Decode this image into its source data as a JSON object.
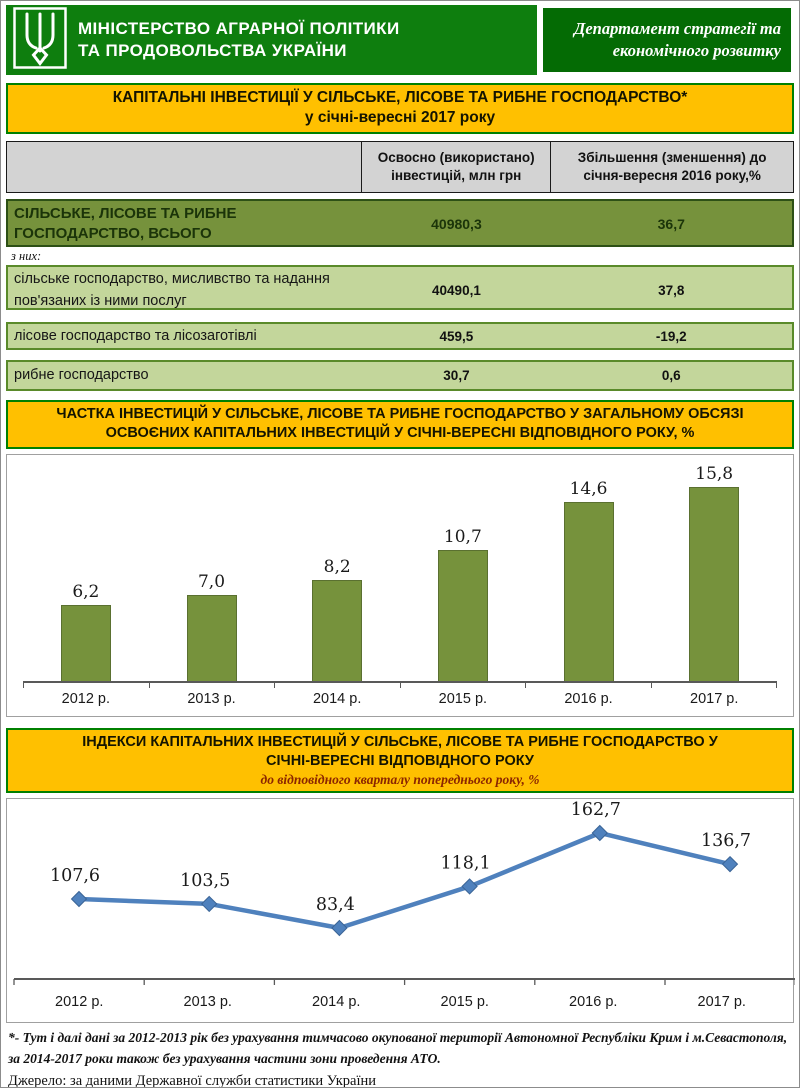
{
  "header": {
    "ministry_line1": "МІНІСТЕРСТВО АГРАРНОЇ ПОЛІТИКИ",
    "ministry_line2": "ТА ПРОДОВОЛЬСТВА УКРАЇНИ",
    "department_line1": "Департамент стратегії та",
    "department_line2": "економічного розвитку"
  },
  "title_bar": {
    "line1": "КАПІТАЛЬНІ ІНВЕСТИЦІЇ У СІЛЬСЬКЕ, ЛІСОВЕ ТА РИБНЕ ГОСПОДАРСТВО*",
    "line2": "у січні-вересні 2017 року"
  },
  "table": {
    "col2_header": "Освосно (використано) інвестицій, млн грн",
    "col3_header": "Збільшення (зменшення)  до січня-вересня 2016 року,%",
    "total_row": {
      "label": "СІЛЬСЬКЕ, ЛІСОВЕ ТА РИБНЕ ГОСПОДАРСТВО, ВСЬОГО",
      "value": "40980,3",
      "change": "36,7"
    },
    "subnote": "з них:",
    "rows": [
      {
        "label": "сільське господарство, мисливство та надання пов'язаних із ними послуг",
        "value": "40490,1",
        "change": "37,8"
      },
      {
        "label": "лісове господарство та лісозаготівлі",
        "value": "459,5",
        "change": "-19,2"
      },
      {
        "label": "рибне господарство",
        "value": "30,7",
        "change": "0,6"
      }
    ]
  },
  "share_section": {
    "title_line1": "ЧАСТКА ІНВЕСТИЦІЙ У СІЛЬСЬКЕ, ЛІСОВЕ ТА РИБНЕ ГОСПОДАРСТВО У ЗАГАЛЬНОМУ ОБСЯЗІ",
    "title_line2": "ОСВОЄНИХ КАПІТАЛЬНИХ ІНВЕСТИЦІЙ У СІЧНІ-ВЕРЕСНІ ВІДПОВІДНОГО РОКУ, %"
  },
  "index_section": {
    "title_line1": "ІНДЕКСИ КАПІТАЛЬНИХ  ІНВЕСТИЦІЙ У СІЛЬСЬКЕ,  ЛІСОВЕ ТА РИБНЕ  ГОСПОДАРСТВО      У",
    "title_line2": "СІЧНІ-ВЕРЕСНІ ВІДПОВІДНОГО РОКУ",
    "subtitle": "до відповідного кварталу попереднього року, %"
  },
  "chart_data": [
    {
      "type": "bar",
      "title": "ЧАСТКА ІНВЕСТИЦІЙ У СІЛЬСЬКЕ, ЛІСОВЕ ТА РИБНЕ ГОСПОДАРСТВО У ЗАГАЛЬНОМУ ОБСЯЗІ ОСВОЄНИХ КАПІТАЛЬНИХ ІНВЕСТИЦІЙ У СІЧНІ-ВЕРЕСНІ ВІДПОВІДНОГО РОКУ, %",
      "categories": [
        "2012 р.",
        "2013 р.",
        "2014 р.",
        "2015 р.",
        "2016 р.",
        "2017 р."
      ],
      "values": [
        6.2,
        7.0,
        8.2,
        10.7,
        14.6,
        15.8
      ],
      "value_labels": [
        "6,2",
        "7,0",
        "8,2",
        "10,7",
        "14,6",
        "15,8"
      ],
      "bar_color": "#76923C",
      "ylim": [
        0,
        18
      ],
      "grid": false,
      "data_labels_position": "above-bars"
    },
    {
      "type": "line",
      "title": "ІНДЕКСИ КАПІТАЛЬНИХ ІНВЕСТИЦІЙ У СІЛЬСЬКЕ, ЛІСОВЕ ТА РИБНЕ ГОСПОДАРСТВО У СІЧНІ-ВЕРЕСНІ ВІДПОВІДНОГО РОКУ",
      "subtitle": "до відповідного кварталу попереднього року, %",
      "categories": [
        "2012 р.",
        "2013 р.",
        "2014 р.",
        "2015 р.",
        "2016 р.",
        "2017 р."
      ],
      "values": [
        107.6,
        103.5,
        83.4,
        118.1,
        162.7,
        136.7
      ],
      "value_labels": [
        "107,6",
        "103,5",
        "83,4",
        "118,1",
        "162,7",
        "136,7"
      ],
      "line_color": "#4F81BD",
      "marker": "diamond",
      "grid": false,
      "data_labels_position": "above-points"
    }
  ],
  "footnote": "*- Тут і далі дані за 2012-2013 рік  без урахування тимчасово окупованої території Автономної Республіки Крим і м.Севастополя, за 2014-2017  роки також без урахування частини зони проведення АТО.",
  "source": "Джерело: за даними Державної служби статистики України"
}
